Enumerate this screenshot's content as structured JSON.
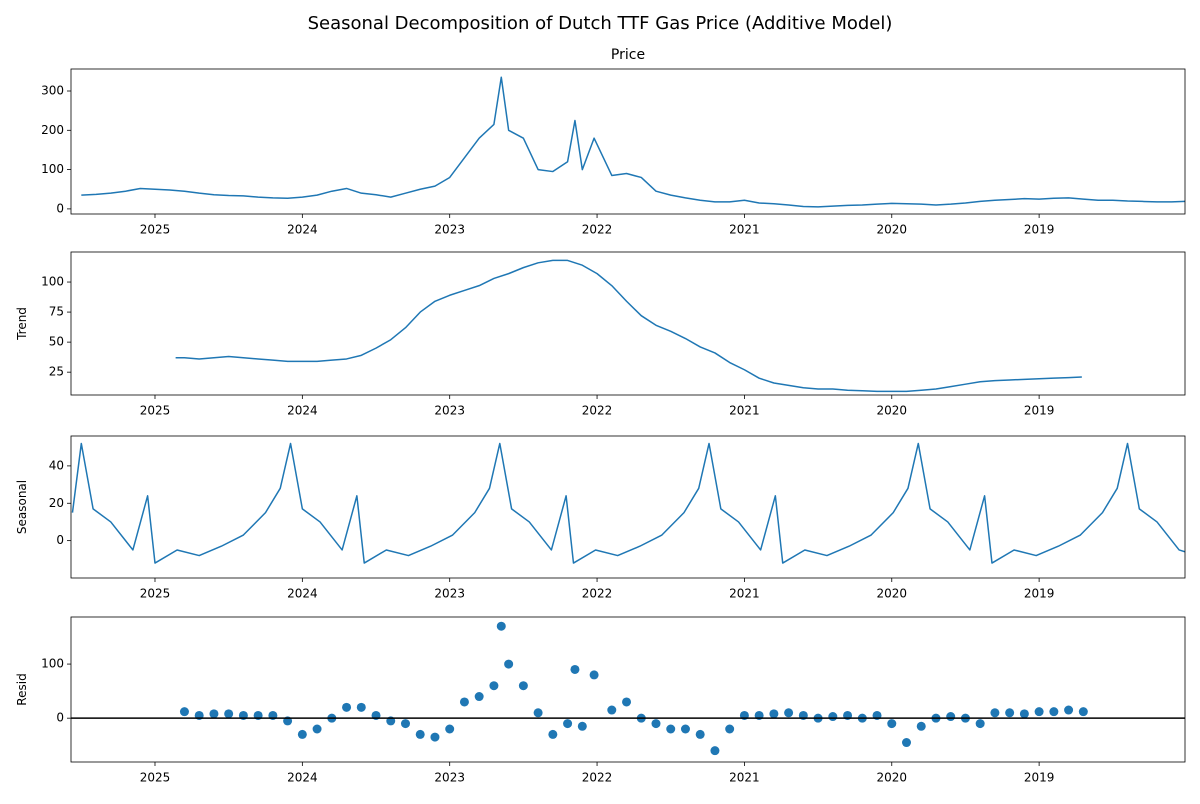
{
  "title": "Seasonal Decomposition of Dutch TTF Gas Price (Additive Model)",
  "chart_data": [
    {
      "type": "line",
      "title": "Price",
      "color": "#1f77b4",
      "x": [
        2025.5,
        2025.4,
        2025.3,
        2025.2,
        2025.1,
        2025.0,
        2024.9,
        2024.8,
        2024.7,
        2024.6,
        2024.5,
        2024.4,
        2024.3,
        2024.2,
        2024.1,
        2024.0,
        2023.9,
        2023.8,
        2023.7,
        2023.6,
        2023.5,
        2023.4,
        2023.3,
        2023.2,
        2023.1,
        2023.0,
        2022.9,
        2022.8,
        2022.7,
        2022.65,
        2022.6,
        2022.5,
        2022.4,
        2022.3,
        2022.2,
        2022.15,
        2022.1,
        2022.02,
        2021.9,
        2021.8,
        2021.7,
        2021.6,
        2021.5,
        2021.4,
        2021.3,
        2021.2,
        2021.1,
        2021.0,
        2020.9,
        2020.8,
        2020.7,
        2020.6,
        2020.5,
        2020.4,
        2020.3,
        2020.2,
        2020.1,
        2020.0,
        2019.9,
        2019.8,
        2019.7,
        2019.6,
        2019.5,
        2019.4,
        2019.3,
        2019.2,
        2019.1,
        2019.0,
        2018.9,
        2018.8,
        2018.7,
        2018.6,
        2018.5,
        2018.4,
        2018.3,
        2018.2,
        2018.1,
        2018.01
      ],
      "values": [
        35,
        37,
        40,
        45,
        52,
        50,
        48,
        45,
        40,
        36,
        34,
        33,
        30,
        28,
        27,
        30,
        35,
        45,
        52,
        40,
        36,
        30,
        40,
        50,
        58,
        80,
        130,
        180,
        215,
        335,
        200,
        180,
        100,
        95,
        120,
        225,
        100,
        180,
        85,
        90,
        80,
        45,
        35,
        28,
        22,
        18,
        18,
        22,
        15,
        13,
        10,
        6,
        5,
        7,
        9,
        10,
        12,
        14,
        13,
        12,
        10,
        12,
        15,
        19,
        22,
        24,
        26,
        25,
        27,
        28,
        25,
        22,
        22,
        20,
        19,
        18,
        18,
        19
      ],
      "xlim": [
        2025.57,
        2018.01
      ],
      "ylim": [
        -13,
        356
      ],
      "xticks": [
        2025,
        2024,
        2023,
        2022,
        2021,
        2020,
        2019
      ],
      "yticks": [
        0,
        100,
        200,
        300
      ]
    },
    {
      "type": "line",
      "ylabel": "Trend",
      "color": "#1f77b4",
      "x": [
        2024.86,
        2024.8,
        2024.7,
        2024.6,
        2024.5,
        2024.4,
        2024.3,
        2024.2,
        2024.1,
        2024.0,
        2023.9,
        2023.8,
        2023.7,
        2023.6,
        2023.5,
        2023.4,
        2023.3,
        2023.2,
        2023.1,
        2023.0,
        2022.9,
        2022.8,
        2022.7,
        2022.6,
        2022.5,
        2022.4,
        2022.3,
        2022.2,
        2022.1,
        2022.0,
        2021.9,
        2021.8,
        2021.7,
        2021.6,
        2021.5,
        2021.4,
        2021.3,
        2021.2,
        2021.1,
        2021.0,
        2020.9,
        2020.8,
        2020.7,
        2020.6,
        2020.5,
        2020.4,
        2020.3,
        2020.2,
        2020.1,
        2020.0,
        2019.9,
        2019.8,
        2019.7,
        2019.6,
        2019.5,
        2019.4,
        2019.3,
        2019.2,
        2019.1,
        2019.0,
        2018.9,
        2018.8,
        2018.71
      ],
      "values": [
        37,
        37,
        36,
        37,
        38,
        37,
        36,
        35,
        34,
        34,
        34,
        35,
        36,
        39,
        45,
        52,
        62,
        75,
        84,
        89,
        93,
        97,
        103,
        107,
        112,
        116,
        118,
        118,
        114,
        107,
        97,
        84,
        72,
        64,
        59,
        53,
        46,
        41,
        33,
        27,
        20,
        16,
        14,
        12,
        11,
        11,
        10,
        9.5,
        9,
        9,
        9,
        10,
        11,
        13,
        15,
        17,
        18,
        18.5,
        19,
        19.5,
        20,
        20.5,
        21
      ],
      "xlim": [
        2025.57,
        2018.01
      ],
      "ylim": [
        6,
        125
      ],
      "xticks": [
        2025,
        2024,
        2023,
        2022,
        2021,
        2020,
        2019
      ],
      "yticks": [
        25,
        50,
        75,
        100
      ]
    },
    {
      "type": "line",
      "ylabel": "Seasonal",
      "color": "#1f77b4",
      "x": [
        2025.56,
        2025.5,
        2025.42,
        2025.3,
        2025.15,
        2025.05,
        2025.0,
        2024.85,
        2024.7,
        2024.55,
        2024.4,
        2024.25,
        2024.15,
        2024.08,
        2024.0,
        2023.88,
        2023.73,
        2023.63,
        2023.58,
        2023.43,
        2023.28,
        2023.13,
        2022.98,
        2022.83,
        2022.73,
        2022.66,
        2022.58,
        2022.46,
        2022.31,
        2022.21,
        2022.16,
        2022.01,
        2021.86,
        2021.71,
        2021.56,
        2021.41,
        2021.31,
        2021.24,
        2021.16,
        2021.04,
        2020.89,
        2020.79,
        2020.74,
        2020.59,
        2020.44,
        2020.29,
        2020.14,
        2019.99,
        2019.89,
        2019.82,
        2019.74,
        2019.62,
        2019.47,
        2019.37,
        2019.32,
        2019.17,
        2019.02,
        2018.87,
        2018.72,
        2018.57,
        2018.47,
        2018.4,
        2018.32,
        2018.2,
        2018.05,
        2018.01
      ],
      "values": [
        15,
        52,
        17,
        10,
        -5,
        24,
        -12,
        -5,
        -8,
        -3,
        3,
        15,
        28,
        52,
        17,
        10,
        -5,
        24,
        -12,
        -5,
        -8,
        -3,
        3,
        15,
        28,
        52,
        17,
        10,
        -5,
        24,
        -12,
        -5,
        -8,
        -3,
        3,
        15,
        28,
        52,
        17,
        10,
        -5,
        24,
        -12,
        -5,
        -8,
        -3,
        3,
        15,
        28,
        52,
        17,
        10,
        -5,
        24,
        -12,
        -5,
        -8,
        -3,
        3,
        15,
        28,
        52,
        17,
        10,
        -5,
        -6
      ],
      "xlim": [
        2025.57,
        2018.01
      ],
      "ylim": [
        -20,
        56
      ],
      "xticks": [
        2025,
        2024,
        2023,
        2022,
        2021,
        2020,
        2019
      ],
      "yticks": [
        0,
        20,
        40
      ]
    },
    {
      "type": "scatter",
      "ylabel": "Resid",
      "color": "#1f77b4",
      "hline": 0,
      "x": [
        2024.8,
        2024.7,
        2024.6,
        2024.5,
        2024.4,
        2024.3,
        2024.2,
        2024.1,
        2024.0,
        2023.9,
        2023.8,
        2023.7,
        2023.6,
        2023.5,
        2023.4,
        2023.3,
        2023.2,
        2023.1,
        2023.0,
        2022.9,
        2022.8,
        2022.7,
        2022.65,
        2022.6,
        2022.5,
        2022.4,
        2022.3,
        2022.2,
        2022.15,
        2022.1,
        2022.02,
        2021.9,
        2021.8,
        2021.7,
        2021.6,
        2021.5,
        2021.4,
        2021.3,
        2021.2,
        2021.1,
        2021.0,
        2020.9,
        2020.8,
        2020.7,
        2020.6,
        2020.5,
        2020.4,
        2020.3,
        2020.2,
        2020.1,
        2020.0,
        2019.9,
        2019.8,
        2019.7,
        2019.6,
        2019.5,
        2019.4,
        2019.3,
        2019.2,
        2019.1,
        2019.0,
        2018.9,
        2018.8,
        2018.7
      ],
      "values": [
        12,
        5,
        8,
        8,
        5,
        5,
        5,
        -5,
        -30,
        -20,
        0,
        20,
        20,
        5,
        -5,
        -10,
        -30,
        -35,
        -20,
        30,
        40,
        60,
        170,
        100,
        60,
        10,
        -30,
        -10,
        90,
        -15,
        80,
        15,
        30,
        0,
        -10,
        -20,
        -20,
        -30,
        -60,
        -20,
        5,
        5,
        8,
        10,
        5,
        0,
        3,
        5,
        0,
        5,
        -10,
        -45,
        -15,
        0,
        3,
        0,
        -10,
        10,
        10,
        8,
        12,
        12,
        15,
        12
      ],
      "xlim": [
        2025.57,
        2018.01
      ],
      "ylim": [
        -81,
        187
      ],
      "xticks": [
        2025,
        2024,
        2023,
        2022,
        2021,
        2020,
        2019
      ],
      "yticks": [
        0,
        100
      ]
    }
  ]
}
